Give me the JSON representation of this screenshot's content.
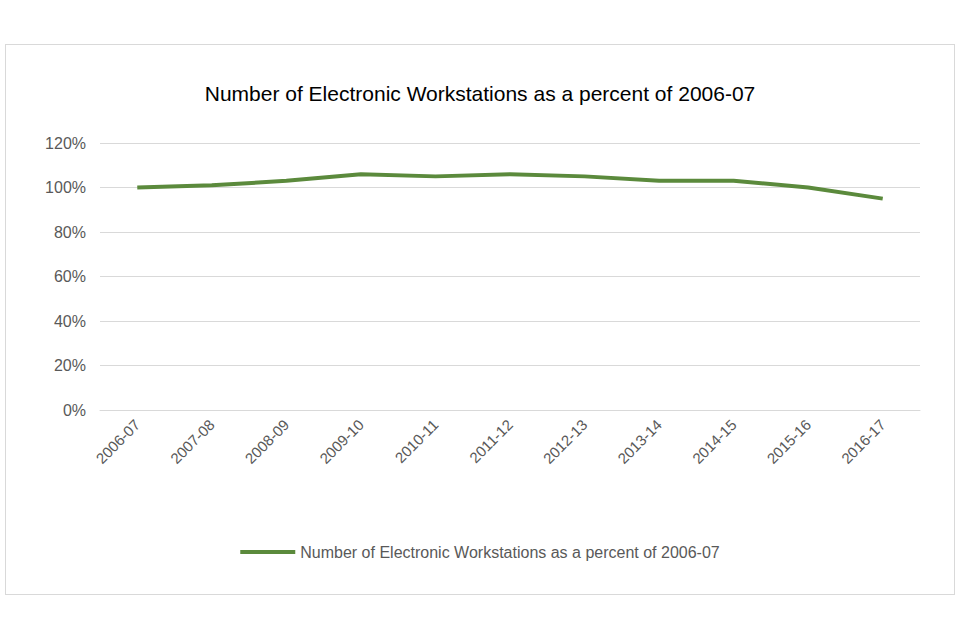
{
  "chart_data": {
    "type": "line",
    "title": "Number of Electronic Workstations as a percent of 2006-07",
    "categories": [
      "2006-07",
      "2007-08",
      "2008-09",
      "2009-10",
      "2010-11",
      "2011-12",
      "2012-13",
      "2013-14",
      "2014-15",
      "2015-16",
      "2016-17"
    ],
    "series": [
      {
        "name": "Number of Electronic Workstations as a percent of 2006-07",
        "color": "#5b8a3c",
        "values": [
          100,
          101,
          103,
          106,
          105,
          106,
          105,
          103,
          103,
          100,
          95
        ]
      }
    ],
    "ylim": [
      0,
      120
    ],
    "yticks": [
      {
        "value": 0,
        "label": "0%"
      },
      {
        "value": 20,
        "label": "20%"
      },
      {
        "value": 40,
        "label": "40%"
      },
      {
        "value": 60,
        "label": "60%"
      },
      {
        "value": 80,
        "label": "80%"
      },
      {
        "value": 100,
        "label": "100%"
      },
      {
        "value": 120,
        "label": "120%"
      }
    ],
    "grid": true,
    "legend": "bottom"
  }
}
